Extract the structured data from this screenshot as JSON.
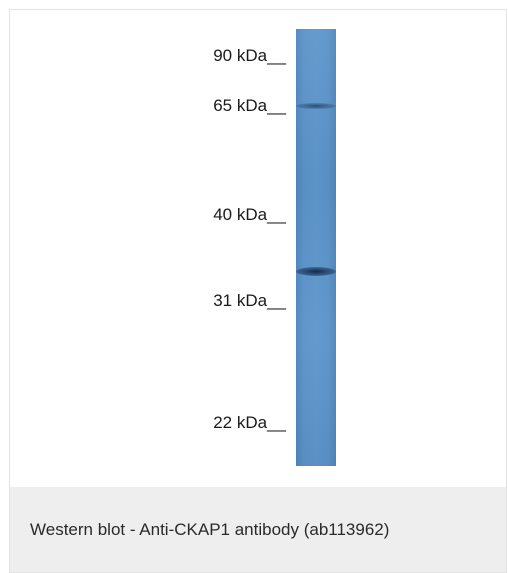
{
  "blot": {
    "markers": [
      {
        "label": "90 kDa__"
      },
      {
        "label": "65 kDa__"
      },
      {
        "label": "40 kDa__"
      },
      {
        "label": "31 kDa__"
      },
      {
        "label": "22 kDa__"
      }
    ],
    "lane_color": "#5a92c7",
    "band_color": "#1e3a66"
  },
  "caption": {
    "text": "Western blot - Anti-CKAP1 antibody (ab113962)"
  }
}
